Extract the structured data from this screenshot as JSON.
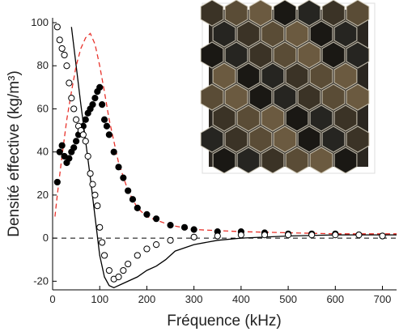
{
  "chart_data": {
    "type": "scatter",
    "x_label": "Fréquence (kHz)",
    "y_label": "Densité effective (kg/m³)",
    "xlim": [
      0,
      730
    ],
    "ylim": [
      -24,
      100
    ],
    "xticks": [
      0,
      100,
      200,
      300,
      400,
      500,
      600,
      700
    ],
    "yticks": [
      -20,
      0,
      20,
      40,
      60,
      80,
      100
    ],
    "reference_line": 0,
    "series": [
      {
        "style": "filled",
        "color": "#000000",
        "x": [
          10,
          15,
          20,
          25,
          30,
          35,
          40,
          45,
          50,
          55,
          60,
          65,
          70,
          75,
          80,
          85,
          90,
          95,
          100,
          105,
          110,
          115,
          120,
          130,
          140,
          150,
          160,
          170,
          180,
          200,
          220,
          250,
          280,
          300,
          350,
          400,
          450,
          500,
          550,
          600,
          650,
          700
        ],
        "values": [
          26,
          40,
          43,
          38,
          35,
          37,
          40,
          42,
          45,
          48,
          50,
          52,
          55,
          58,
          60,
          62,
          65,
          68,
          70,
          62,
          55,
          52,
          48,
          40,
          33,
          28,
          22,
          18,
          14,
          11,
          9,
          6,
          5,
          4,
          3,
          3,
          2.5,
          2,
          2,
          2,
          1.5,
          1
        ]
      },
      {
        "style": "open",
        "color": "#000000",
        "x": [
          10,
          15,
          20,
          25,
          30,
          35,
          40,
          45,
          50,
          55,
          60,
          65,
          70,
          75,
          80,
          85,
          90,
          95,
          100,
          105,
          110,
          120,
          130,
          140,
          150,
          160,
          180,
          200,
          220,
          250,
          300,
          350,
          400,
          450,
          500,
          550,
          600,
          650,
          700
        ],
        "values": [
          98,
          92,
          88,
          85,
          80,
          72,
          65,
          60,
          55,
          52,
          50,
          48,
          45,
          38,
          30,
          25,
          20,
          15,
          5,
          -2,
          -8,
          -15,
          -19,
          -18,
          -15,
          -12,
          -8,
          -5,
          -3,
          -1,
          0.5,
          1,
          1.5,
          1.5,
          1.5,
          1.5,
          1.5,
          1.5,
          1
        ]
      },
      {
        "style": "line",
        "color": "#000000",
        "x": [
          40,
          50,
          60,
          70,
          80,
          90,
          100,
          110,
          120,
          130,
          150,
          180,
          200,
          220,
          240,
          260,
          300,
          350,
          400,
          500,
          600,
          730
        ],
        "values": [
          98,
          80,
          62,
          45,
          28,
          10,
          -8,
          -18,
          -22,
          -23,
          -21,
          -18,
          -15,
          -13,
          -10,
          -6,
          -3,
          -1,
          0,
          1,
          1.5,
          1.5
        ]
      },
      {
        "style": "dashed",
        "color": "#e8322b",
        "x": [
          5,
          10,
          20,
          30,
          40,
          50,
          60,
          70,
          80,
          90,
          100,
          110,
          120,
          140,
          160,
          180,
          200,
          250,
          300,
          400,
          500,
          600,
          730
        ],
        "values": [
          10,
          20,
          38,
          55,
          68,
          80,
          88,
          93,
          95,
          90,
          80,
          68,
          55,
          35,
          22,
          14,
          10,
          6,
          4,
          3,
          2.5,
          2,
          2
        ]
      }
    ]
  }
}
